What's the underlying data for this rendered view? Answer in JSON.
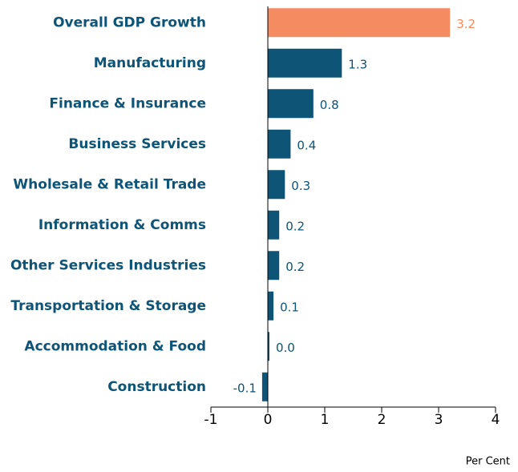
{
  "chart_data": {
    "type": "barh",
    "categories": [
      "Overall GDP Growth",
      "Manufacturing",
      "Finance & Insurance",
      "Business Services",
      "Wholesale & Retail Trade",
      "Information & Comms",
      "Other Services Industries",
      "Transportation & Storage",
      "Accommodation & Food",
      "Construction"
    ],
    "values": [
      3.2,
      1.3,
      0.8,
      0.4,
      0.3,
      0.2,
      0.2,
      0.1,
      0.0,
      -0.1
    ],
    "value_labels": [
      "3.2",
      "1.3",
      "0.8",
      "0.4",
      "0.3",
      "0.2",
      "0.2",
      "0.1",
      "0.0",
      "-0.1"
    ],
    "colors": [
      "#f58b60",
      "#0d5477",
      "#0d5477",
      "#0d5477",
      "#0d5477",
      "#0d5477",
      "#0d5477",
      "#0d5477",
      "#0d5477",
      "#0d5477"
    ],
    "xlim": [
      -1,
      4
    ],
    "xticks": [
      -1,
      0,
      1,
      2,
      3,
      4
    ],
    "xlabel": "Per Cent"
  }
}
